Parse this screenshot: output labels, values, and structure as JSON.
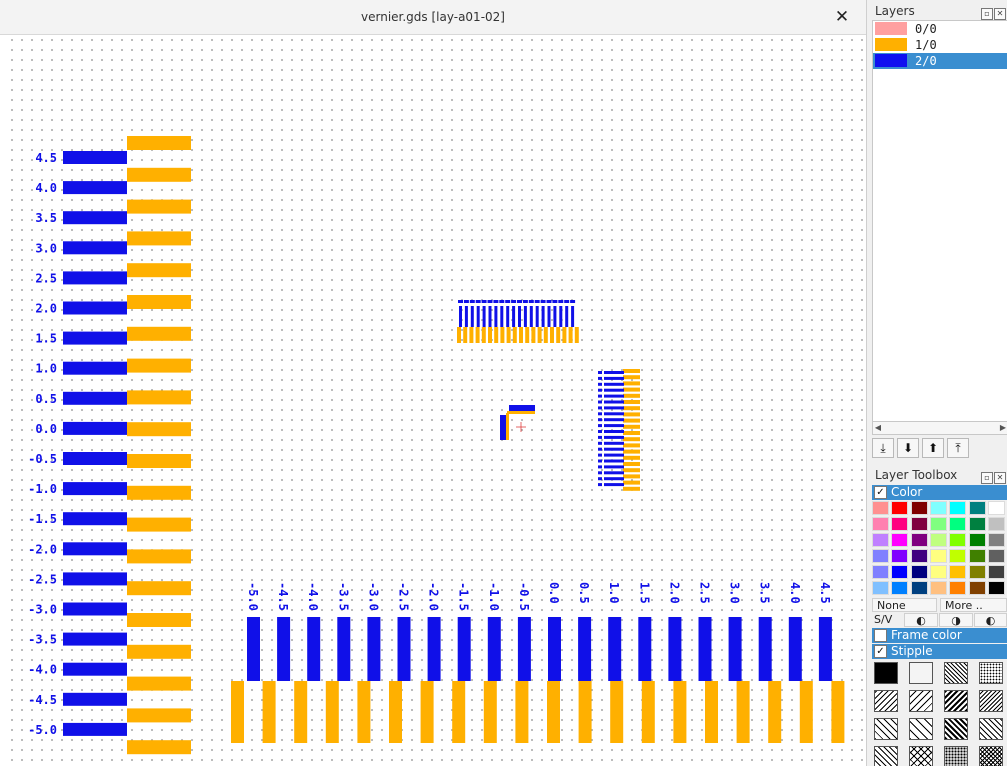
{
  "window": {
    "title": "vernier.gds [lay-a01-02]",
    "close_label": "✕"
  },
  "layers_panel": {
    "title": "Layers",
    "layers": [
      {
        "name": "0/0",
        "color": "#ffa0a0",
        "selected": false
      },
      {
        "name": "1/0",
        "color": "#ffb000",
        "selected": false
      },
      {
        "name": "2/0",
        "color": "#1010f0",
        "selected": true
      }
    ],
    "nav_buttons": [
      "⤓",
      "⬇",
      "⬆",
      "⤒"
    ]
  },
  "toolbox": {
    "title": "Layer Toolbox",
    "color_section": {
      "label": "Color",
      "checked": true
    },
    "none_label": "None",
    "more_label": "More ..",
    "sv_label": "S/V",
    "frame_color": {
      "label": "Frame color",
      "checked": false
    },
    "stipple": {
      "label": "Stipple",
      "checked": true
    },
    "palette": [
      [
        "#ff9090",
        "#ff0000",
        "#800000",
        "#80ffff",
        "#00ffff",
        "#008080",
        "#ffffff"
      ],
      [
        "#ff80b0",
        "#ff0080",
        "#800040",
        "#80ff80",
        "#00ff80",
        "#008040",
        "#c0c0c0"
      ],
      [
        "#c080ff",
        "#ff00ff",
        "#800080",
        "#c0ff80",
        "#80ff00",
        "#008000",
        "#808080"
      ],
      [
        "#8080ff",
        "#8000ff",
        "#400080",
        "#ffff80",
        "#c0ff00",
        "#408000",
        "#606060"
      ],
      [
        "#8080ff",
        "#0000ff",
        "#000080",
        "#ffff80",
        "#ffc000",
        "#808000",
        "#404040"
      ],
      [
        "#80c0ff",
        "#0080ff",
        "#004080",
        "#ffc080",
        "#ff8000",
        "#804000",
        "#000000"
      ]
    ]
  },
  "layout": {
    "left_vernier_labels": [
      "4.5",
      "4.0",
      "3.5",
      "3.0",
      "2.5",
      "2.0",
      "1.5",
      "1.0",
      "0.5",
      "0.0",
      "-0.5",
      "-1.0",
      "-1.5",
      "-2.0",
      "-2.5",
      "-3.0",
      "-3.5",
      "-4.0",
      "-4.5",
      "-5.0"
    ],
    "bottom_vernier_labels": [
      "-5.0",
      "-4.5",
      "-4.0",
      "-3.5",
      "-3.0",
      "-2.5",
      "-2.0",
      "-1.5",
      "-1.0",
      "-0.5",
      "0.0",
      "0.5",
      "1.0",
      "1.5",
      "2.0",
      "2.5",
      "3.0",
      "3.5",
      "4.0",
      "4.5"
    ],
    "colors": {
      "blue": "#1010e8",
      "orange": "#ffb000"
    }
  }
}
